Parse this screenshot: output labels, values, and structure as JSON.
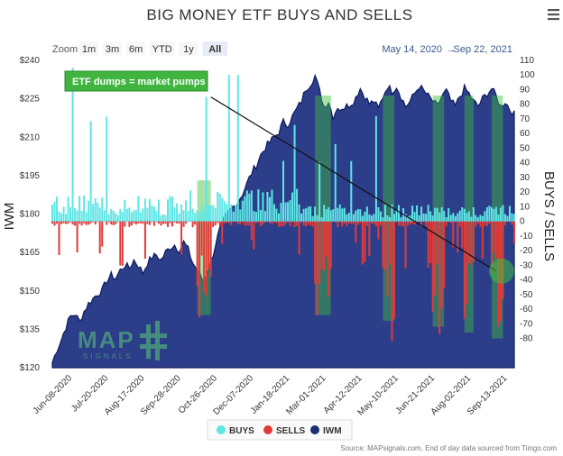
{
  "title": "BIG MONEY ETF BUYS AND SELLS",
  "zoom": {
    "label": "Zoom",
    "buttons": [
      "1m",
      "3m",
      "6m",
      "YTD",
      "1y",
      "All"
    ],
    "selected": "All"
  },
  "range": {
    "from": "May 14, 2020",
    "arrow": "→",
    "to": "Sep 22, 2021"
  },
  "annotation": "ETF dumps = market pumps",
  "source": "Source: MAPsignals.com, End of day data sourced from Tiingo.com",
  "logo": {
    "main": "MAP",
    "sub": "SIGNALS"
  },
  "chart_data": {
    "type": "bar",
    "left_axis_title": "IWM",
    "right_axis_title": "BUYS / SELLS",
    "left_axis": {
      "min": 120,
      "max": 240,
      "ticks": [
        "$120",
        "$135",
        "$150",
        "$165",
        "$180",
        "$195",
        "$210",
        "$225",
        "$240"
      ]
    },
    "right_axis": {
      "min": -100,
      "max": 110,
      "ticks": [
        "-80",
        "-70",
        "-60",
        "-50",
        "-40",
        "-30",
        "-20",
        "-10",
        "0",
        "10",
        "20",
        "30",
        "40",
        "50",
        "60",
        "70",
        "80",
        "90",
        "100",
        "110"
      ]
    },
    "x_ticks": [
      "Jun-08-2020",
      "Jul-20-2020",
      "Aug-17-2020",
      "Sep-28-2020",
      "Oct-26-2020",
      "Dec-07-2020",
      "Jan-18-2021",
      "Mar-01-2021",
      "Apr-12-2021",
      "May-10-2021",
      "Jun-21-2021",
      "Aug-02-2021",
      "Sep-13-2021"
    ],
    "legend": [
      {
        "name": "BUYS",
        "color": "#5ee6e6"
      },
      {
        "name": "SELLS",
        "color": "#e23a3a"
      },
      {
        "name": "IWM",
        "color": "#1c2e72"
      }
    ],
    "iwm": [
      [
        0,
        122
      ],
      [
        2,
        127
      ],
      [
        4,
        131
      ],
      [
        6,
        136
      ],
      [
        8,
        140
      ],
      [
        10,
        141
      ],
      [
        12,
        138
      ],
      [
        14,
        142
      ],
      [
        16,
        145
      ],
      [
        18,
        147
      ],
      [
        20,
        149
      ],
      [
        22,
        150
      ],
      [
        24,
        154
      ],
      [
        26,
        156
      ],
      [
        28,
        155
      ],
      [
        30,
        158
      ],
      [
        32,
        160
      ],
      [
        34,
        159
      ],
      [
        36,
        162
      ],
      [
        38,
        160
      ],
      [
        40,
        157
      ],
      [
        42,
        161
      ],
      [
        44,
        163
      ],
      [
        46,
        164
      ],
      [
        48,
        162
      ],
      [
        50,
        165
      ],
      [
        52,
        167
      ],
      [
        54,
        168
      ],
      [
        56,
        166
      ],
      [
        58,
        169
      ],
      [
        60,
        166
      ],
      [
        62,
        161
      ],
      [
        64,
        158
      ],
      [
        66,
        155
      ],
      [
        67,
        154
      ],
      [
        68,
        157
      ],
      [
        70,
        161
      ],
      [
        72,
        168
      ],
      [
        74,
        174
      ],
      [
        76,
        178
      ],
      [
        78,
        181
      ],
      [
        80,
        183
      ],
      [
        82,
        185
      ],
      [
        84,
        188
      ],
      [
        86,
        192
      ],
      [
        88,
        196
      ],
      [
        90,
        199
      ],
      [
        92,
        203
      ],
      [
        94,
        206
      ],
      [
        96,
        208
      ],
      [
        98,
        210
      ],
      [
        100,
        212
      ],
      [
        102,
        216
      ],
      [
        104,
        215
      ],
      [
        106,
        218
      ],
      [
        108,
        221
      ],
      [
        110,
        224
      ],
      [
        112,
        229
      ],
      [
        114,
        231
      ],
      [
        116,
        234
      ],
      [
        118,
        228
      ],
      [
        120,
        222
      ],
      [
        122,
        224
      ],
      [
        124,
        218
      ],
      [
        126,
        222
      ],
      [
        128,
        220
      ],
      [
        130,
        224
      ],
      [
        132,
        222
      ],
      [
        134,
        226
      ],
      [
        136,
        229
      ],
      [
        138,
        226
      ],
      [
        140,
        223
      ],
      [
        142,
        224
      ],
      [
        144,
        221
      ],
      [
        146,
        226
      ],
      [
        148,
        230
      ],
      [
        150,
        228
      ],
      [
        152,
        230
      ],
      [
        154,
        226
      ],
      [
        156,
        222
      ],
      [
        158,
        224
      ],
      [
        160,
        227
      ],
      [
        162,
        230
      ],
      [
        164,
        228
      ],
      [
        166,
        226
      ],
      [
        168,
        224
      ],
      [
        170,
        222
      ],
      [
        172,
        226
      ],
      [
        174,
        228
      ],
      [
        176,
        224
      ],
      [
        178,
        222
      ],
      [
        180,
        226
      ],
      [
        182,
        229
      ],
      [
        184,
        227
      ],
      [
        186,
        224
      ],
      [
        188,
        222
      ],
      [
        190,
        225
      ],
      [
        192,
        227
      ],
      [
        194,
        229
      ],
      [
        196,
        226
      ],
      [
        198,
        222
      ],
      [
        200,
        224
      ],
      [
        202,
        221
      ],
      [
        204,
        219
      ]
    ],
    "highlights": [
      [
        64,
        70
      ],
      [
        116,
        123
      ],
      [
        146,
        151
      ],
      [
        168,
        173
      ],
      [
        182,
        186
      ],
      [
        194,
        199
      ]
    ],
    "trend_line": {
      "from": [
        70,
        85
      ],
      "to": [
        196,
        -34
      ]
    }
  }
}
